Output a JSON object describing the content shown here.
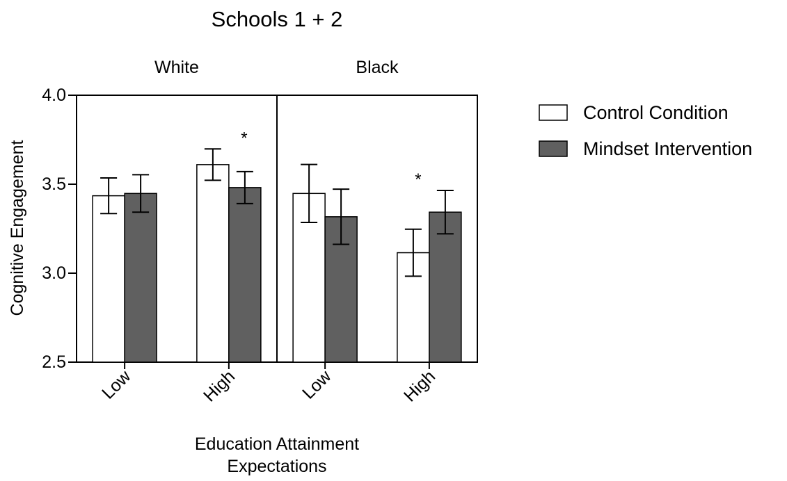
{
  "chart_data": {
    "type": "bar",
    "title": "Schools 1 + 2",
    "xlabel_lines": [
      "Education Attainment",
      "Expectations"
    ],
    "ylabel": "Cognitive Engagement",
    "ylim": [
      2.5,
      4.0
    ],
    "yticks": [
      "2.5",
      "3.0",
      "3.5",
      "4.0"
    ],
    "legend_position": "right",
    "colors": {
      "control": "#ffffff",
      "mindset": "#606060",
      "stroke": "#000000"
    },
    "panels": [
      {
        "name": "White",
        "categories": [
          "Low",
          "High"
        ],
        "series": [
          {
            "name": "Control Condition",
            "values": [
              3.435,
              3.61
            ],
            "errors": [
              0.1,
              0.088
            ]
          },
          {
            "name": "Mindset Intervention",
            "values": [
              3.448,
              3.481
            ],
            "errors": [
              0.105,
              0.09
            ]
          }
        ],
        "annotations": [
          {
            "category_index": 1,
            "text": "*"
          }
        ]
      },
      {
        "name": "Black",
        "categories": [
          "Low",
          "High"
        ],
        "series": [
          {
            "name": "Control Condition",
            "values": [
              3.448,
              3.115
            ],
            "errors": [
              0.163,
              0.132
            ]
          },
          {
            "name": "Mindset Intervention",
            "values": [
              3.317,
              3.343
            ],
            "errors": [
              0.155,
              0.122
            ]
          }
        ],
        "annotations": [
          {
            "category_index": 1,
            "text": "*"
          }
        ]
      }
    ]
  }
}
